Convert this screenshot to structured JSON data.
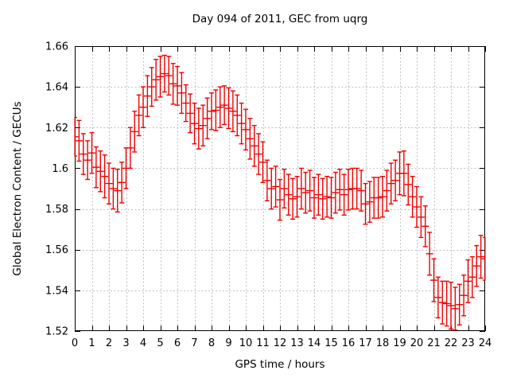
{
  "title": "Day 094 of 2011, GEC from uqrg",
  "colors": {
    "series": "#ee0000",
    "grid": "#b9b9b9",
    "axis": "#000000",
    "background": "#ffffff"
  },
  "chart_data": {
    "type": "scatter",
    "style": "points-with-yerrorbars",
    "title": "Day 094 of 2011, GEC from uqrg",
    "xlabel": "GPS time / hours",
    "ylabel": "Global Electron Content / GECUs",
    "xlim": [
      0,
      24
    ],
    "ylim": [
      1.52,
      1.66
    ],
    "grid": true,
    "legend": "none",
    "xticks": [
      0,
      1,
      2,
      3,
      4,
      5,
      6,
      7,
      8,
      9,
      10,
      11,
      12,
      13,
      14,
      15,
      16,
      17,
      18,
      19,
      20,
      21,
      22,
      23,
      24
    ],
    "yticks": [
      1.52,
      1.54,
      1.56,
      1.58,
      1.6,
      1.62,
      1.64,
      1.66
    ],
    "ytick_labels": [
      "1.52",
      "1.54",
      "1.56",
      "1.58",
      "1.6",
      "1.62",
      "1.64",
      "1.66"
    ],
    "x": [
      0,
      0.25,
      0.5,
      0.75,
      1,
      1.25,
      1.5,
      1.75,
      2,
      2.25,
      2.5,
      2.75,
      3,
      3.25,
      3.5,
      3.75,
      4,
      4.25,
      4.5,
      4.75,
      5,
      5.25,
      5.5,
      5.75,
      6,
      6.25,
      6.5,
      6.75,
      7,
      7.25,
      7.5,
      7.75,
      8,
      8.25,
      8.5,
      8.75,
      9,
      9.25,
      9.5,
      9.75,
      10,
      10.25,
      10.5,
      10.75,
      11,
      11.25,
      11.5,
      11.75,
      12,
      12.25,
      12.5,
      12.75,
      13,
      13.25,
      13.5,
      13.75,
      14,
      14.25,
      14.5,
      14.75,
      15,
      15.25,
      15.5,
      15.75,
      16,
      16.25,
      16.5,
      16.75,
      17,
      17.25,
      17.5,
      17.75,
      18,
      18.25,
      18.5,
      18.75,
      19,
      19.25,
      19.5,
      19.75,
      20,
      20.25,
      20.5,
      20.75,
      21,
      21.25,
      21.5,
      21.75,
      22,
      22.25,
      22.5,
      22.75,
      23,
      23.25,
      23.5,
      23.75,
      24
    ],
    "y": [
      1.6155,
      1.6135,
      1.607,
      1.604,
      1.6075,
      1.6005,
      1.5985,
      1.596,
      1.5925,
      1.59,
      1.589,
      1.593,
      1.6,
      1.61,
      1.618,
      1.626,
      1.63,
      1.6355,
      1.64,
      1.6435,
      1.645,
      1.6465,
      1.6455,
      1.6415,
      1.6405,
      1.637,
      1.632,
      1.627,
      1.622,
      1.6195,
      1.621,
      1.6245,
      1.628,
      1.6285,
      1.63,
      1.631,
      1.6295,
      1.628,
      1.626,
      1.622,
      1.619,
      1.6145,
      1.611,
      1.607,
      1.603,
      1.594,
      1.59,
      1.591,
      1.5845,
      1.59,
      1.587,
      1.585,
      1.586,
      1.59,
      1.588,
      1.589,
      1.5855,
      1.587,
      1.585,
      1.586,
      1.5855,
      1.588,
      1.5895,
      1.587,
      1.5895,
      1.59,
      1.59,
      1.589,
      1.5825,
      1.5835,
      1.5855,
      1.5855,
      1.586,
      1.589,
      1.5925,
      1.594,
      1.5975,
      1.5975,
      1.592,
      1.586,
      1.581,
      1.576,
      1.5715,
      1.558,
      1.545,
      1.5365,
      1.534,
      1.5335,
      1.5325,
      1.531,
      1.533,
      1.5375,
      1.5445,
      1.5465,
      1.552,
      1.5565,
      1.5555
    ],
    "yerr": [
      0.0095,
      0.01,
      0.01,
      0.0095,
      0.01,
      0.01,
      0.01,
      0.0105,
      0.01,
      0.01,
      0.0105,
      0.01,
      0.01,
      0.01,
      0.01,
      0.01,
      0.01,
      0.01,
      0.0095,
      0.01,
      0.01,
      0.009,
      0.0095,
      0.01,
      0.0095,
      0.01,
      0.009,
      0.0095,
      0.01,
      0.01,
      0.01,
      0.01,
      0.009,
      0.01,
      0.01,
      0.0095,
      0.01,
      0.01,
      0.01,
      0.01,
      0.01,
      0.01,
      0.01,
      0.01,
      0.01,
      0.01,
      0.01,
      0.01,
      0.01,
      0.0095,
      0.01,
      0.01,
      0.01,
      0.01,
      0.01,
      0.01,
      0.01,
      0.01,
      0.01,
      0.01,
      0.01,
      0.01,
      0.01,
      0.01,
      0.01,
      0.01,
      0.01,
      0.01,
      0.01,
      0.01,
      0.01,
      0.01,
      0.01,
      0.01,
      0.01,
      0.01,
      0.0105,
      0.011,
      0.01,
      0.01,
      0.01,
      0.01,
      0.01,
      0.0105,
      0.0105,
      0.01,
      0.0105,
      0.011,
      0.0115,
      0.0105,
      0.01,
      0.01,
      0.0105,
      0.01,
      0.01,
      0.0105,
      0.0105
    ]
  }
}
